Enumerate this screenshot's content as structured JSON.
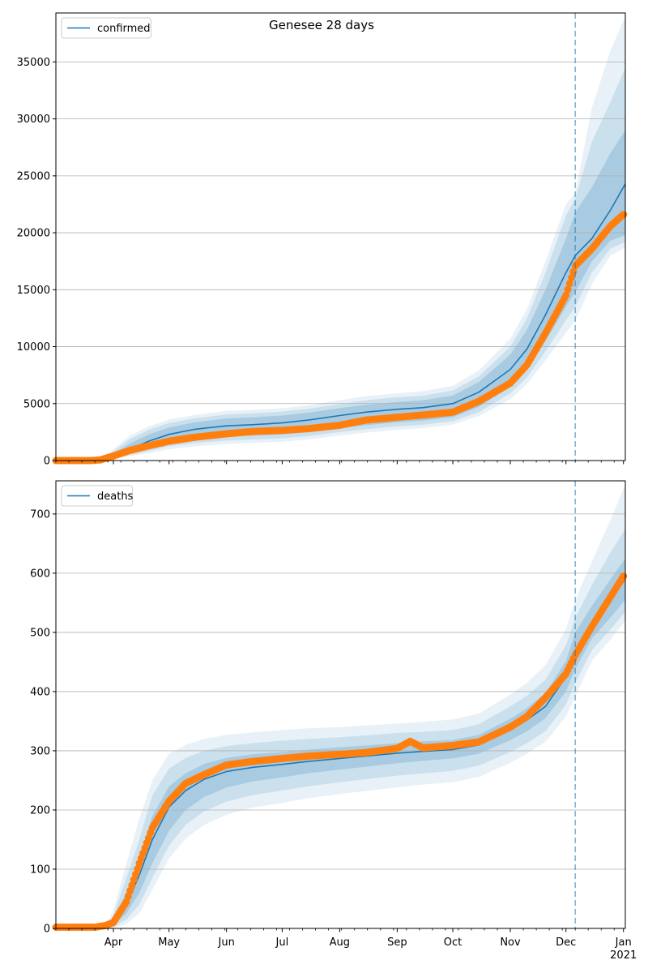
{
  "figure": {
    "title": "Genesee 28 days"
  },
  "chart_data": [
    {
      "type": "line",
      "title": "Genesee 28 days",
      "xlabel": "",
      "ylabel": "",
      "x_axis": {
        "start": "2020-03-01",
        "end": "2021-01-02",
        "major_ticks": [
          "Apr",
          "May",
          "Jun",
          "Jul",
          "Aug",
          "Sep",
          "Oct",
          "Nov",
          "Dec",
          "Jan"
        ],
        "year_label": "2021",
        "major_tick_dates": [
          "2020-04-01",
          "2020-05-01",
          "2020-06-01",
          "2020-07-01",
          "2020-08-01",
          "2020-09-01",
          "2020-10-01",
          "2020-11-01",
          "2020-12-01",
          "2021-01-01"
        ]
      },
      "ylim": [
        0,
        39300
      ],
      "yticks": [
        0,
        5000,
        10000,
        15000,
        20000,
        25000,
        30000,
        35000
      ],
      "grid": "y",
      "legend": {
        "entries": [
          "confirmed"
        ],
        "placement": "top-left"
      },
      "forecast_date": "2020-12-06",
      "series": [
        {
          "name": "confirmed",
          "role": "model",
          "color": "#1f77b4",
          "x": [
            "2020-03-01",
            "2020-03-15",
            "2020-03-25",
            "2020-04-01",
            "2020-04-10",
            "2020-04-20",
            "2020-05-01",
            "2020-05-15",
            "2020-06-01",
            "2020-06-15",
            "2020-07-01",
            "2020-07-15",
            "2020-08-01",
            "2020-08-15",
            "2020-09-01",
            "2020-09-15",
            "2020-10-01",
            "2020-10-15",
            "2020-11-01",
            "2020-11-10",
            "2020-11-20",
            "2020-12-01",
            "2020-12-06",
            "2020-12-15",
            "2020-12-25",
            "2021-01-02"
          ],
          "values": [
            0,
            0,
            0,
            400,
            1000,
            1700,
            2300,
            2750,
            3050,
            3150,
            3300,
            3550,
            3950,
            4250,
            4500,
            4650,
            5000,
            6000,
            8000,
            9800,
            12800,
            16500,
            18000,
            19500,
            22000,
            24300
          ],
          "bands": [
            {
              "lower": [
                0,
                0,
                0,
                250,
                650,
                1100,
                1600,
                1900,
                2100,
                2200,
                2300,
                2500,
                2850,
                3100,
                3350,
                3500,
                3800,
                4700,
                6500,
                8000,
                10500,
                13500,
                14800,
                17500,
                19300,
                19800
              ],
              "upper": [
                0,
                0,
                0,
                600,
                1500,
                2300,
                2900,
                3350,
                3700,
                3800,
                3950,
                4200,
                4600,
                4900,
                5150,
                5300,
                5700,
                6900,
                9300,
                11500,
                15000,
                19500,
                21800,
                24000,
                27000,
                29000
              ]
            },
            {
              "lower": [
                0,
                0,
                0,
                180,
                500,
                850,
                1250,
                1550,
                1750,
                1850,
                1950,
                2150,
                2500,
                2750,
                3000,
                3150,
                3450,
                4250,
                5900,
                7300,
                9600,
                12300,
                13500,
                16500,
                18600,
                19200
              ],
              "upper": [
                0,
                0,
                0,
                800,
                1900,
                2700,
                3300,
                3700,
                4050,
                4150,
                4300,
                4550,
                4950,
                5300,
                5550,
                5700,
                6150,
                7400,
                10000,
                12500,
                16500,
                21500,
                23000,
                28000,
                31500,
                34500
              ]
            },
            {
              "lower": [
                0,
                0,
                0,
                120,
                400,
                650,
                1000,
                1250,
                1450,
                1550,
                1650,
                1850,
                2200,
                2450,
                2700,
                2850,
                3150,
                3900,
                5400,
                6700,
                8800,
                11200,
                12300,
                15500,
                18000,
                18700
              ],
              "upper": [
                0,
                0,
                0,
                1000,
                2200,
                3000,
                3600,
                4000,
                4350,
                4450,
                4600,
                4850,
                5300,
                5650,
                5900,
                6100,
                6550,
                7900,
                10700,
                13300,
                17500,
                22500,
                23500,
                31000,
                36000,
                39000
              ]
            }
          ]
        },
        {
          "name": "",
          "role": "observed",
          "color": "#ff7f0e",
          "x": [
            "2020-03-01",
            "2020-03-20",
            "2020-03-25",
            "2020-04-01",
            "2020-04-10",
            "2020-04-20",
            "2020-05-01",
            "2020-05-15",
            "2020-06-01",
            "2020-06-15",
            "2020-07-01",
            "2020-07-15",
            "2020-08-01",
            "2020-08-15",
            "2020-09-01",
            "2020-09-15",
            "2020-10-01",
            "2020-10-15",
            "2020-11-01",
            "2020-11-10",
            "2020-11-20",
            "2020-12-01",
            "2020-12-06",
            "2020-12-15",
            "2020-12-25",
            "2021-01-01"
          ],
          "values": [
            0,
            0,
            60,
            400,
            900,
            1300,
            1700,
            2050,
            2350,
            2550,
            2650,
            2800,
            3100,
            3550,
            3800,
            4000,
            4250,
            5200,
            6800,
            8400,
            11200,
            14500,
            17100,
            18600,
            20600,
            21600
          ]
        }
      ]
    },
    {
      "type": "line",
      "title": "",
      "xlabel": "",
      "ylabel": "",
      "ylim": [
        0,
        756
      ],
      "yticks": [
        0,
        100,
        200,
        300,
        400,
        500,
        600,
        700
      ],
      "grid": "y",
      "legend": {
        "entries": [
          "deaths"
        ],
        "placement": "top-left"
      },
      "forecast_date": "2020-12-06",
      "series": [
        {
          "name": "deaths",
          "role": "model",
          "color": "#1f77b4",
          "x": [
            "2020-03-01",
            "2020-03-20",
            "2020-03-28",
            "2020-04-01",
            "2020-04-08",
            "2020-04-15",
            "2020-04-22",
            "2020-05-01",
            "2020-05-10",
            "2020-05-20",
            "2020-06-01",
            "2020-06-15",
            "2020-07-01",
            "2020-07-15",
            "2020-08-01",
            "2020-08-15",
            "2020-09-01",
            "2020-09-15",
            "2020-10-01",
            "2020-10-15",
            "2020-11-01",
            "2020-11-10",
            "2020-11-20",
            "2020-12-01",
            "2020-12-06",
            "2020-12-15",
            "2020-12-25",
            "2021-01-02"
          ],
          "values": [
            0,
            0,
            2,
            10,
            40,
            90,
            150,
            205,
            233,
            252,
            265,
            272,
            277,
            282,
            287,
            291,
            296,
            299,
            302,
            310,
            335,
            352,
            375,
            425,
            470,
            515,
            555,
            590
          ],
          "bands": [
            {
              "lower": [
                0,
                0,
                1,
                6,
                25,
                60,
                110,
                165,
                200,
                222,
                238,
                248,
                255,
                262,
                268,
                273,
                279,
                283,
                287,
                295,
                318,
                333,
                355,
                400,
                438,
                490,
                525,
                555
              ],
              "upper": [
                0,
                0,
                3,
                15,
                60,
                120,
                190,
                240,
                262,
                278,
                288,
                294,
                298,
                302,
                306,
                309,
                313,
                316,
                318,
                327,
                354,
                372,
                398,
                452,
                500,
                545,
                590,
                625
              ]
            },
            {
              "lower": [
                0,
                0,
                0,
                3,
                15,
                40,
                85,
                140,
                175,
                198,
                214,
                225,
                233,
                240,
                247,
                252,
                258,
                262,
                266,
                275,
                298,
                313,
                333,
                378,
                415,
                470,
                505,
                535
              ],
              "upper": [
                0,
                0,
                5,
                22,
                85,
                150,
                225,
                270,
                288,
                300,
                308,
                313,
                317,
                320,
                323,
                326,
                330,
                332,
                335,
                345,
                375,
                393,
                420,
                478,
                525,
                580,
                635,
                675
              ]
            },
            {
              "lower": [
                0,
                0,
                0,
                1,
                8,
                25,
                65,
                118,
                152,
                175,
                192,
                204,
                212,
                220,
                227,
                232,
                238,
                243,
                247,
                256,
                280,
                295,
                315,
                358,
                392,
                452,
                488,
                520
              ],
              "upper": [
                0,
                0,
                8,
                30,
                110,
                185,
                250,
                295,
                310,
                320,
                327,
                331,
                335,
                338,
                340,
                343,
                346,
                349,
                353,
                363,
                395,
                415,
                445,
                505,
                555,
                620,
                690,
                750
              ]
            }
          ]
        },
        {
          "name": "",
          "role": "observed",
          "color": "#ff7f0e",
          "x": [
            "2020-03-01",
            "2020-03-22",
            "2020-03-28",
            "2020-04-01",
            "2020-04-08",
            "2020-04-15",
            "2020-04-22",
            "2020-05-01",
            "2020-05-10",
            "2020-05-20",
            "2020-06-01",
            "2020-06-15",
            "2020-07-01",
            "2020-07-15",
            "2020-08-01",
            "2020-08-15",
            "2020-09-01",
            "2020-09-08",
            "2020-09-15",
            "2020-10-01",
            "2020-10-15",
            "2020-11-01",
            "2020-11-10",
            "2020-11-20",
            "2020-12-01",
            "2020-12-06",
            "2020-12-15",
            "2020-12-25",
            "2021-01-01"
          ],
          "values": [
            2,
            2,
            5,
            10,
            45,
            110,
            170,
            215,
            245,
            260,
            276,
            282,
            287,
            291,
            294,
            297,
            304,
            316,
            305,
            309,
            315,
            340,
            358,
            390,
            430,
            462,
            510,
            560,
            595
          ]
        }
      ]
    }
  ]
}
